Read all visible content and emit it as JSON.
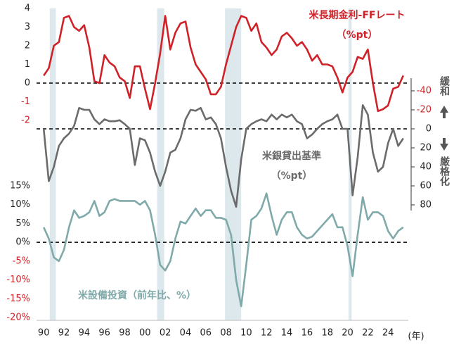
{
  "chart_data": [
    {
      "type": "line",
      "title": "米長期金利-FFレート",
      "subtitle": "（%pt）",
      "color": "#cf2127",
      "ylim": [
        -2,
        4
      ],
      "yticks": [
        4,
        3,
        2,
        1,
        0,
        -1,
        -2
      ],
      "zero_line": true,
      "shading": [
        [
          1990.6,
          1991.2
        ],
        [
          2001.2,
          2001.9
        ],
        [
          2007.9,
          2009.5
        ],
        [
          2020.1,
          2020.4
        ]
      ],
      "x": [
        1990,
        1990.5,
        1991,
        1991.5,
        1992,
        1992.5,
        1993,
        1993.5,
        1994,
        1994.5,
        1995,
        1995.5,
        1996,
        1996.5,
        1997,
        1997.5,
        1998,
        1998.5,
        1999,
        1999.5,
        2000,
        2000.5,
        2001,
        2001.5,
        2002,
        2002.5,
        2003,
        2003.5,
        2004,
        2004.5,
        2005,
        2005.5,
        2006,
        2006.5,
        2007,
        2007.5,
        2008,
        2008.5,
        2009,
        2009.5,
        2010,
        2010.5,
        2011,
        2011.5,
        2012,
        2012.5,
        2013,
        2013.5,
        2014,
        2014.5,
        2015,
        2015.5,
        2016,
        2016.5,
        2017,
        2017.5,
        2018,
        2018.5,
        2019,
        2019.5,
        2020,
        2020.5,
        2021,
        2021.5,
        2022,
        2022.5,
        2023,
        2023.5,
        2024,
        2024.5,
        2025,
        2025.5
      ],
      "values": [
        0.4,
        0.8,
        2.0,
        2.2,
        3.5,
        3.6,
        3.0,
        2.8,
        3.1,
        1.9,
        0.1,
        0.0,
        1.5,
        1.1,
        0.9,
        0.3,
        0.1,
        -0.8,
        0.9,
        0.9,
        -0.3,
        -1.4,
        0.0,
        1.6,
        3.6,
        1.8,
        2.7,
        3.2,
        3.3,
        1.9,
        1.0,
        0.6,
        0.2,
        -0.6,
        -0.6,
        -0.2,
        1.0,
        2.0,
        3.0,
        3.6,
        3.5,
        2.8,
        3.2,
        2.2,
        1.9,
        1.5,
        1.8,
        2.5,
        2.7,
        2.4,
        2.0,
        2.2,
        1.8,
        1.2,
        1.5,
        1.0,
        1.0,
        0.9,
        0.3,
        -0.5,
        0.3,
        0.6,
        1.4,
        1.3,
        1.8,
        0.0,
        -1.5,
        -1.4,
        -1.2,
        -0.3,
        -0.2,
        0.4
      ]
    },
    {
      "type": "line",
      "title": "米銀貸出基準",
      "subtitle": "（%pt）",
      "color": "#6b6b6b",
      "axis": "y2",
      "y_inverted": true,
      "ylim": [
        -40,
        80
      ],
      "yticks": [
        -40,
        -20,
        0,
        20,
        40,
        60,
        80
      ],
      "zero_line": true,
      "annotations": [
        "緩和",
        "厳格化"
      ],
      "x": [
        1990,
        1990.5,
        1991,
        1991.5,
        1992,
        1992.5,
        1993,
        1993.5,
        1994,
        1994.5,
        1995,
        1995.5,
        1996,
        1996.5,
        1997,
        1997.5,
        1998,
        1998.5,
        1999,
        1999.5,
        2000,
        2000.5,
        2001,
        2001.5,
        2002,
        2002.5,
        2003,
        2003.5,
        2004,
        2004.5,
        2005,
        2005.5,
        2006,
        2006.5,
        2007,
        2007.5,
        2008,
        2008.5,
        2009,
        2009.5,
        2010,
        2010.5,
        2011,
        2011.5,
        2012,
        2012.5,
        2013,
        2013.5,
        2014,
        2014.5,
        2015,
        2015.5,
        2016,
        2016.5,
        2017,
        2017.5,
        2018,
        2018.5,
        2019,
        2019.5,
        2020,
        2020.5,
        2021,
        2021.5,
        2022,
        2022.5,
        2023,
        2023.5,
        2024,
        2024.5,
        2025,
        2025.5
      ],
      "values": [
        0,
        55,
        40,
        18,
        10,
        5,
        -3,
        -22,
        -20,
        -20,
        -10,
        -5,
        -10,
        -8,
        -8,
        -9,
        -5,
        0,
        38,
        10,
        12,
        25,
        45,
        60,
        45,
        25,
        22,
        10,
        -10,
        -20,
        -19,
        -22,
        -10,
        -12,
        -5,
        10,
        40,
        65,
        82,
        32,
        0,
        -5,
        -8,
        -10,
        -8,
        -15,
        -10,
        -15,
        -12,
        -15,
        -8,
        -5,
        10,
        6,
        0,
        -5,
        -8,
        -10,
        -15,
        0,
        0,
        70,
        30,
        -25,
        -15,
        25,
        45,
        40,
        15,
        0,
        18,
        10
      ]
    },
    {
      "type": "line",
      "title": "米設備投資（前年比、%）",
      "color": "#80a9a9",
      "ylim": [
        -20,
        15
      ],
      "zero_line": true,
      "yticks": [
        {
          "value": 15,
          "label": "15%"
        },
        {
          "value": 10,
          "label": "10%"
        },
        {
          "value": 5,
          "label": "5%"
        },
        {
          "value": 0,
          "label": "0%"
        },
        {
          "value": -5,
          "label": "-5%"
        },
        {
          "value": -10,
          "label": "-10%"
        },
        {
          "value": -15,
          "label": "-15%"
        },
        {
          "value": -20,
          "label": "-20%"
        }
      ],
      "xlim": [
        1989.5,
        2026
      ],
      "x_label": "(年)",
      "xticks": [
        {
          "value": 1990,
          "label": "90"
        },
        {
          "value": 1992,
          "label": "92"
        },
        {
          "value": 1994,
          "label": "94"
        },
        {
          "value": 1996,
          "label": "96"
        },
        {
          "value": 1998,
          "label": "98"
        },
        {
          "value": 2000,
          "label": "00"
        },
        {
          "value": 2002,
          "label": "02"
        },
        {
          "value": 2004,
          "label": "04"
        },
        {
          "value": 2006,
          "label": "06"
        },
        {
          "value": 2008,
          "label": "08"
        },
        {
          "value": 2010,
          "label": "10"
        },
        {
          "value": 2012,
          "label": "12"
        },
        {
          "value": 2014,
          "label": "14"
        },
        {
          "value": 2016,
          "label": "16"
        },
        {
          "value": 2018,
          "label": "18"
        },
        {
          "value": 2020,
          "label": "20"
        },
        {
          "value": 2022,
          "label": "22"
        },
        {
          "value": 2024,
          "label": "24"
        }
      ],
      "x": [
        1990,
        1990.5,
        1991,
        1991.5,
        1992,
        1992.5,
        1993,
        1993.5,
        1994,
        1994.5,
        1995,
        1995.5,
        1996,
        1996.5,
        1997,
        1997.5,
        1998,
        1998.5,
        1999,
        1999.5,
        2000,
        2000.5,
        2001,
        2001.5,
        2002,
        2002.5,
        2003,
        2003.5,
        2004,
        2004.5,
        2005,
        2005.5,
        2006,
        2006.5,
        2007,
        2007.5,
        2008,
        2008.5,
        2009,
        2009.5,
        2010,
        2010.5,
        2011,
        2011.5,
        2012,
        2012.5,
        2013,
        2013.5,
        2014,
        2014.5,
        2015,
        2015.5,
        2016,
        2016.5,
        2017,
        2017.5,
        2018,
        2018.5,
        2019,
        2019.5,
        2020,
        2020.5,
        2021,
        2021.5,
        2022,
        2022.5,
        2023,
        2023.5,
        2024,
        2024.5,
        2025,
        2025.5
      ],
      "values": [
        4,
        1,
        -4,
        -5,
        -2,
        4,
        8.5,
        6.5,
        7,
        8,
        11,
        7,
        8,
        11,
        11.5,
        11,
        11,
        11,
        11,
        10,
        11,
        8.5,
        2,
        -6,
        -7.5,
        -5,
        1,
        5.5,
        5,
        7,
        9,
        7,
        8.5,
        8.5,
        6.5,
        6.5,
        6,
        2,
        -10,
        -17,
        -6,
        6,
        7,
        9,
        13,
        7,
        2,
        6,
        8,
        8,
        4,
        2,
        1,
        1.5,
        3,
        4.5,
        6,
        7.5,
        4,
        4,
        -1,
        -9,
        2,
        12,
        6,
        8,
        8,
        7,
        3,
        1,
        3,
        4
      ]
    }
  ]
}
